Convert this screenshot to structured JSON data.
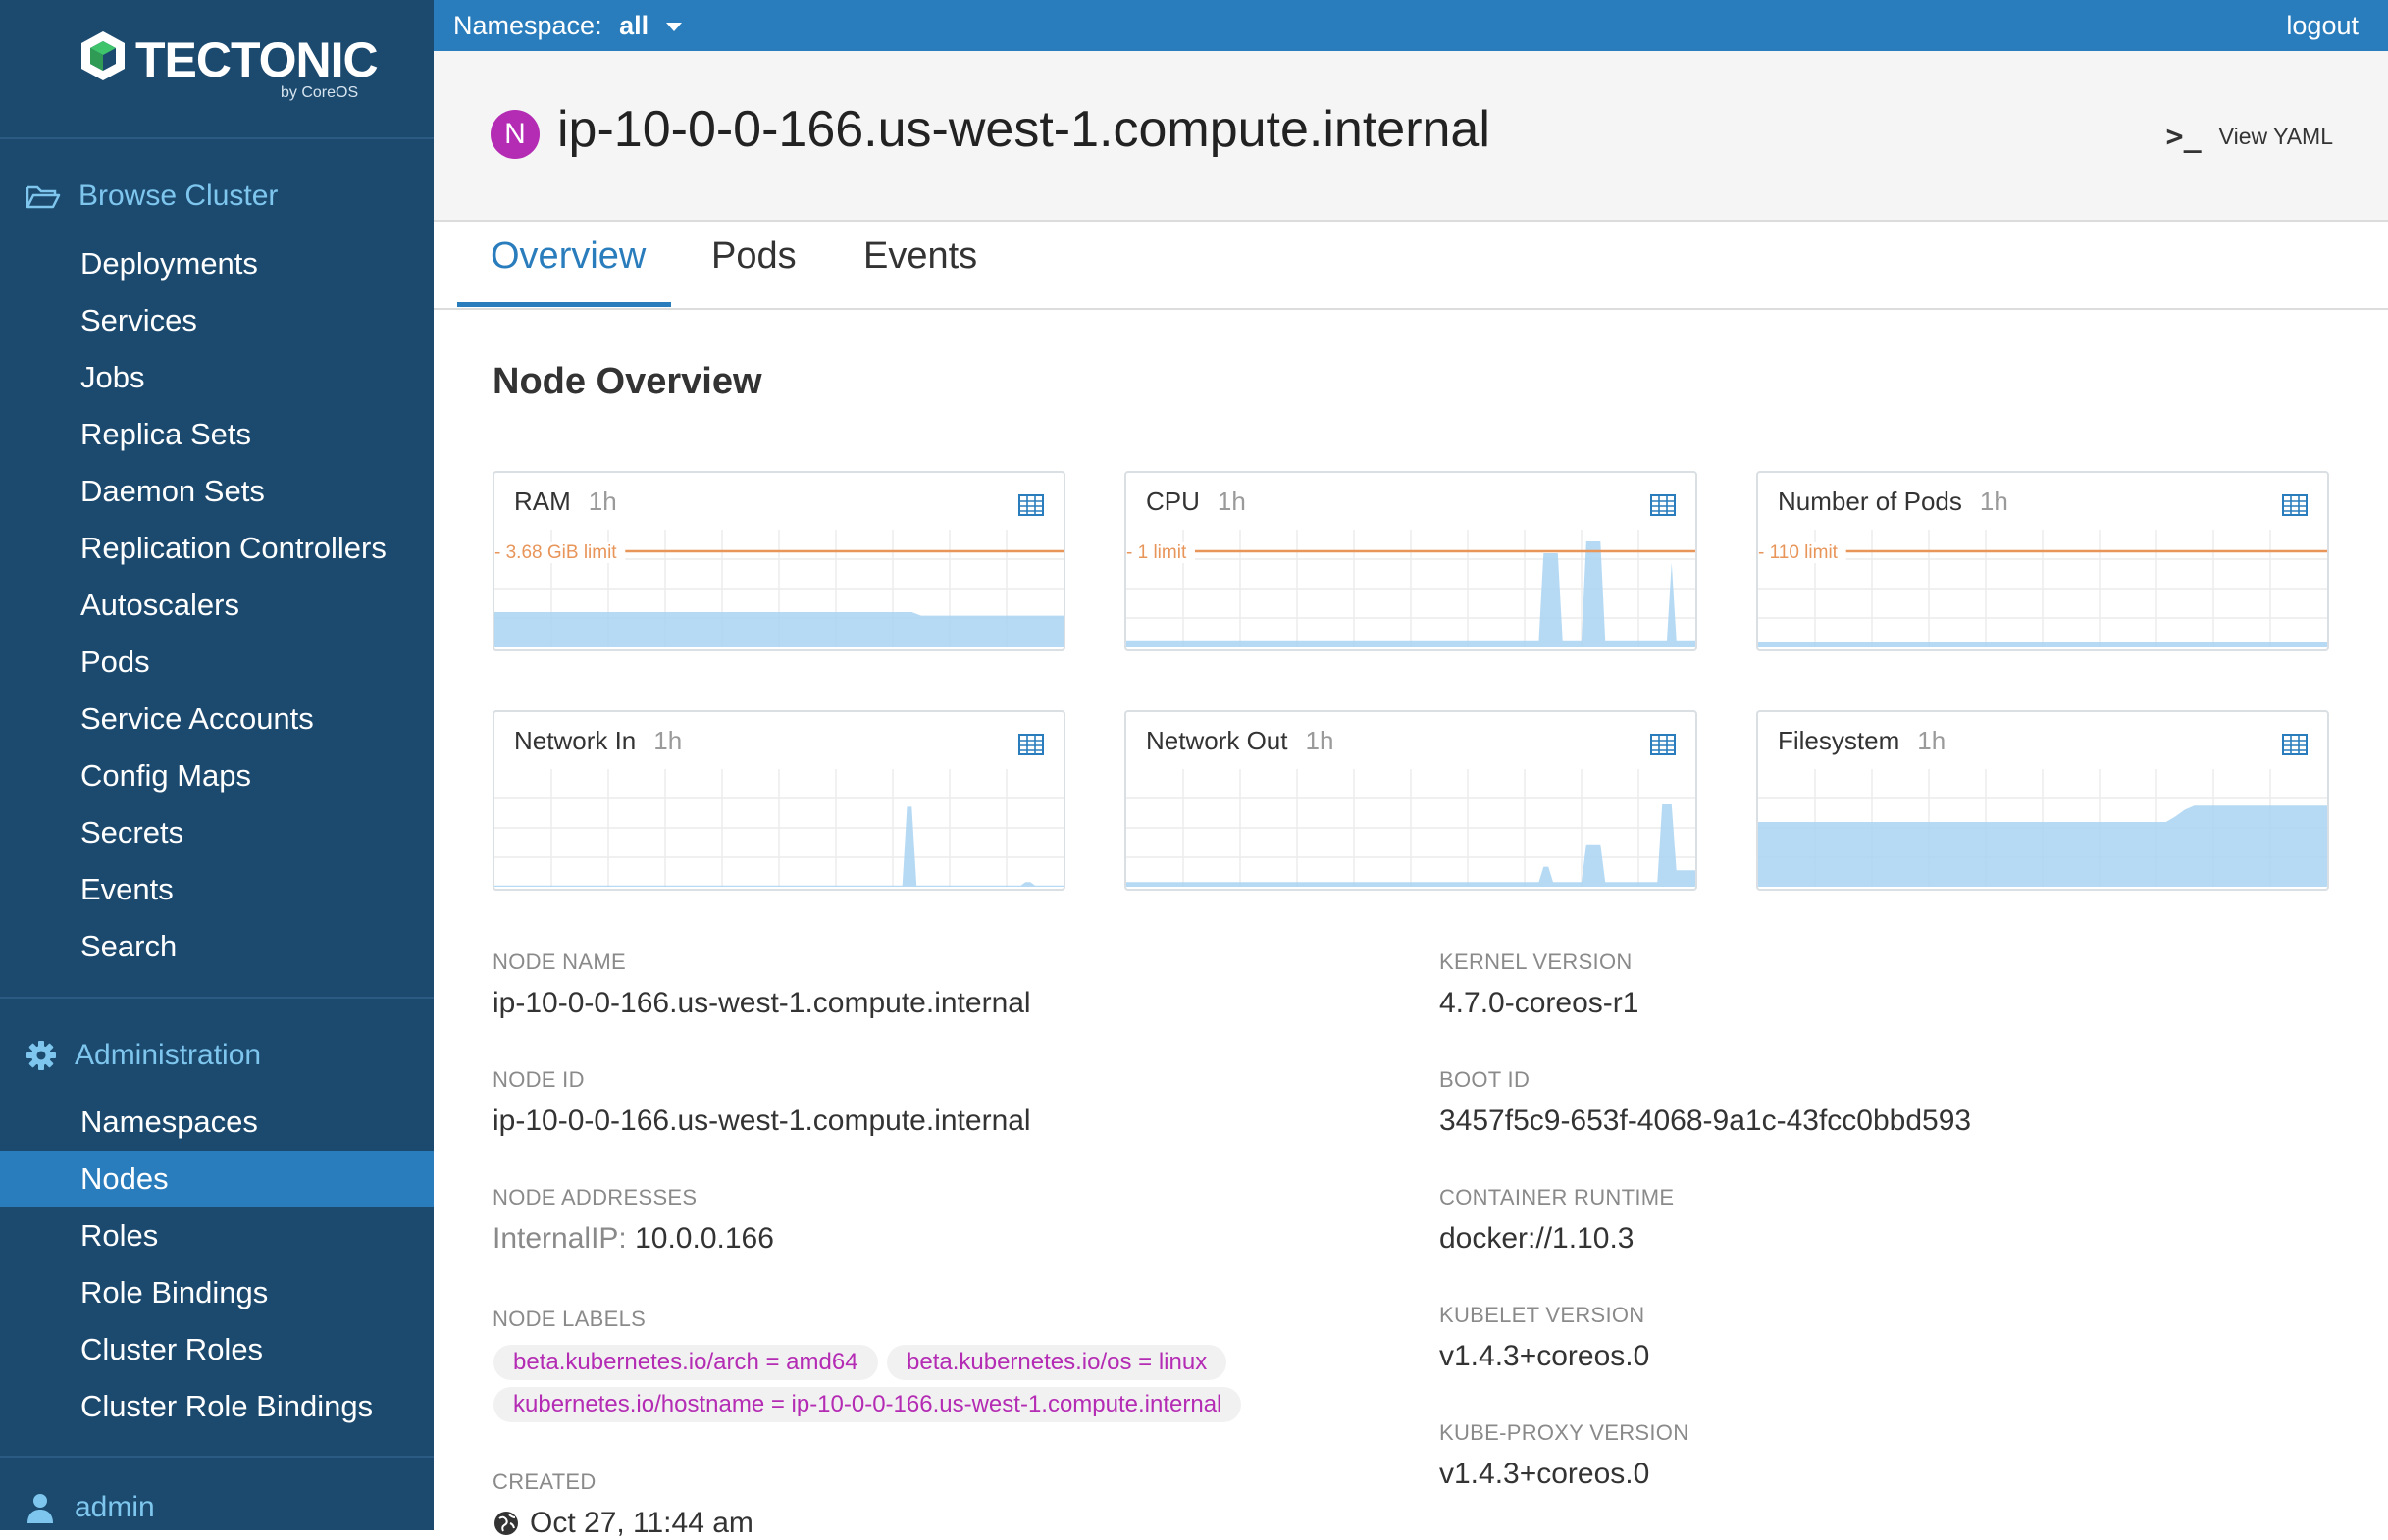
{
  "brand": {
    "name": "TECTONIC",
    "byline": "by CoreOS"
  },
  "sidebar": {
    "browse": {
      "label": "Browse Cluster",
      "items": [
        "Deployments",
        "Services",
        "Jobs",
        "Replica Sets",
        "Daemon Sets",
        "Replication Controllers",
        "Autoscalers",
        "Pods",
        "Service Accounts",
        "Config Maps",
        "Secrets",
        "Events",
        "Search"
      ]
    },
    "admin": {
      "label": "Administration",
      "items": [
        "Namespaces",
        "Nodes",
        "Roles",
        "Role Bindings",
        "Cluster Roles",
        "Cluster Role Bindings"
      ],
      "active": "Nodes"
    },
    "user": {
      "label": "admin"
    }
  },
  "topbar": {
    "namespace_label": "Namespace:",
    "namespace_value": "all",
    "logout": "logout"
  },
  "header": {
    "badge": "N",
    "title": "ip-10-0-0-166.us-west-1.compute.internal",
    "view_yaml": "View YAML",
    "term_glyph": ">_"
  },
  "tabs": [
    {
      "label": "Overview",
      "active": true
    },
    {
      "label": "Pods"
    },
    {
      "label": "Events"
    }
  ],
  "section_title": "Node Overview",
  "colors": {
    "sidebar": "#1c4a6f",
    "accent": "#2a7dbc",
    "label_pink": "#b42bb4",
    "limit_line": "#e8955a",
    "area_fill": "#a9d4f2"
  },
  "charts": [
    {
      "title": "RAM",
      "range": "1h",
      "limit_label": "- 3.68 GiB limit",
      "limit": 3.68,
      "unit": "GiB",
      "level": "ram"
    },
    {
      "title": "CPU",
      "range": "1h",
      "limit_label": "- 1 limit",
      "limit": 1,
      "unit": "cores",
      "level": "cpu"
    },
    {
      "title": "Number of Pods",
      "range": "1h",
      "limit_label": "- 110 limit",
      "limit": 110,
      "unit": "pods",
      "level": "pods"
    },
    {
      "title": "Network In",
      "range": "1h",
      "level": "netin"
    },
    {
      "title": "Network Out",
      "range": "1h",
      "level": "netout"
    },
    {
      "title": "Filesystem",
      "range": "1h",
      "level": "fs"
    }
  ],
  "details_left": {
    "node_name": {
      "label": "NODE NAME",
      "value": "ip-10-0-0-166.us-west-1.compute.internal"
    },
    "node_id": {
      "label": "NODE ID",
      "value": "ip-10-0-0-166.us-west-1.compute.internal"
    },
    "node_addresses": {
      "label": "NODE ADDRESSES",
      "type": "InternalIP:",
      "value": "10.0.0.166"
    },
    "node_labels": {
      "label": "NODE LABELS",
      "items": [
        "beta.kubernetes.io/arch = amd64",
        "beta.kubernetes.io/os = linux",
        "kubernetes.io/hostname = ip-10-0-0-166.us-west-1.compute.internal"
      ]
    },
    "created": {
      "label": "CREATED",
      "value": "Oct 27, 11:44 am"
    }
  },
  "details_right": {
    "kernel": {
      "label": "KERNEL VERSION",
      "value": "4.7.0-coreos-r1"
    },
    "boot_id": {
      "label": "BOOT ID",
      "value": "3457f5c9-653f-4068-9a1c-43fcc0bbd593"
    },
    "runtime": {
      "label": "CONTAINER RUNTIME",
      "value": "docker://1.10.3"
    },
    "kubelet": {
      "label": "KUBELET VERSION",
      "value": "v1.4.3+coreos.0"
    },
    "kube_proxy": {
      "label": "KUBE-PROXY VERSION",
      "value": "v1.4.3+coreos.0"
    }
  }
}
